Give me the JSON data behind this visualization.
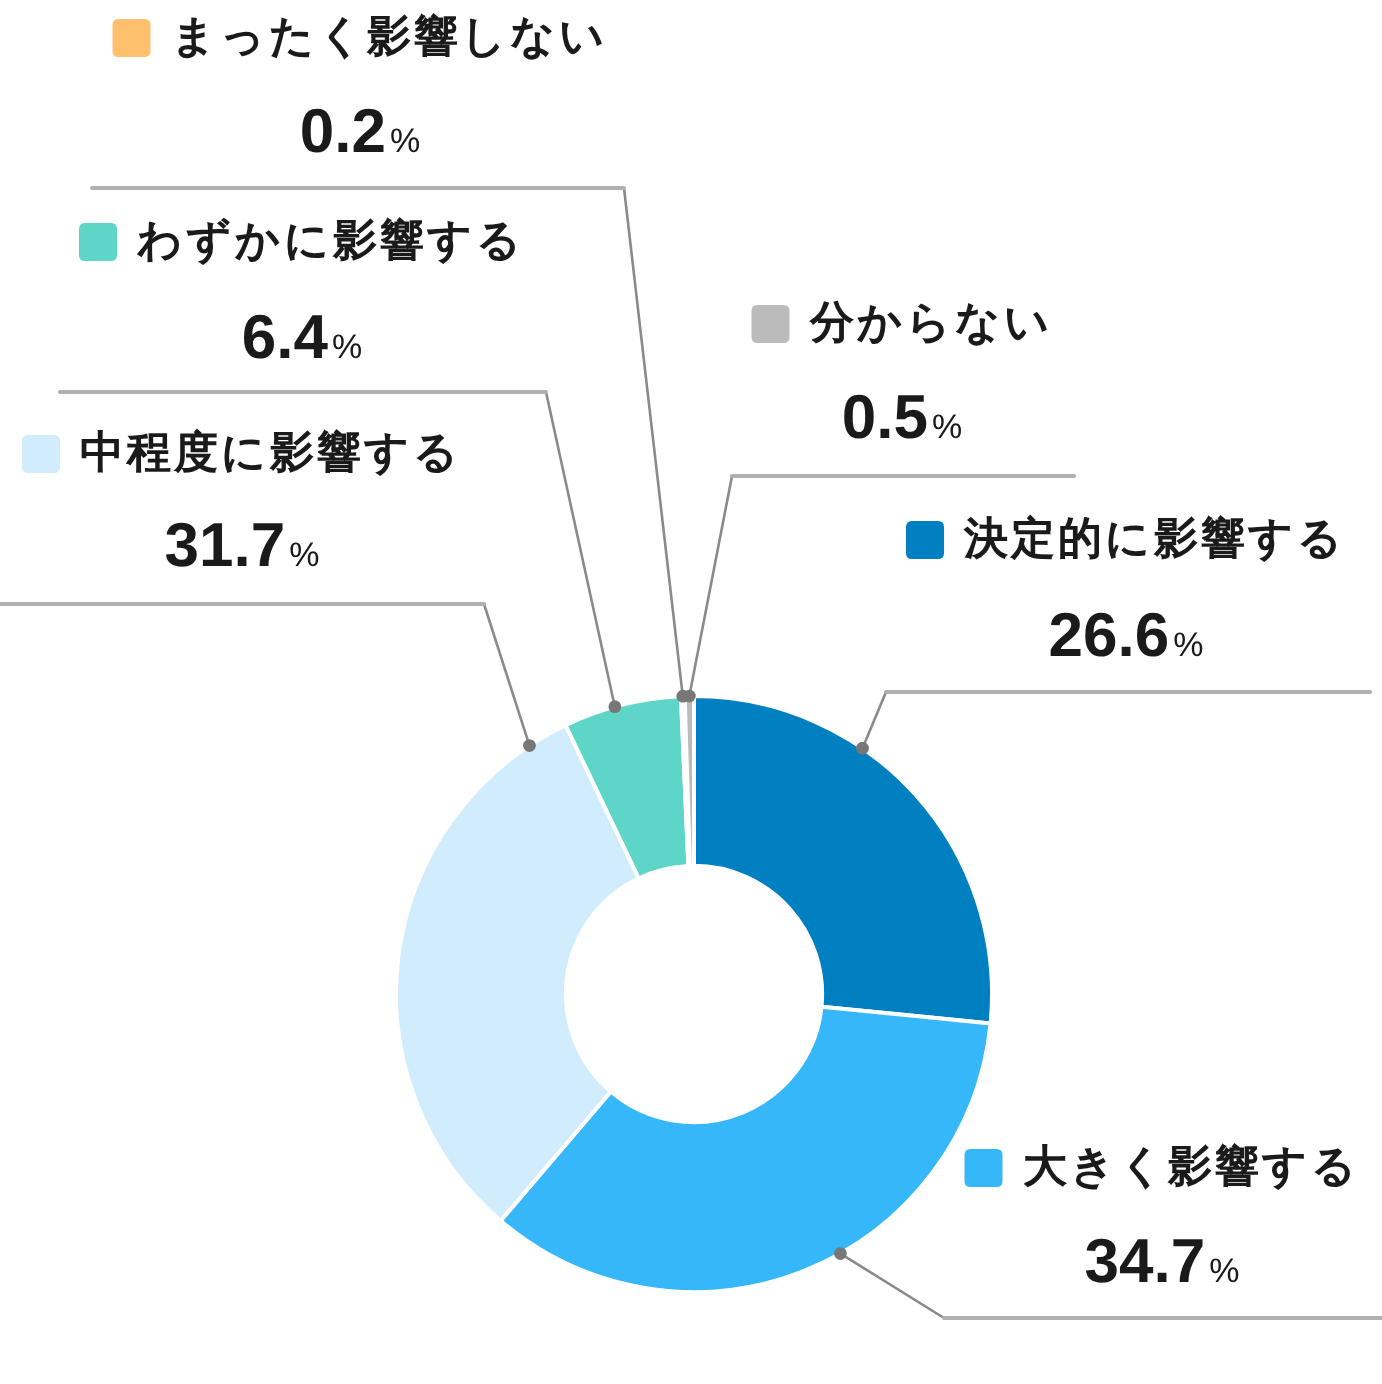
{
  "chart_data": {
    "type": "donut",
    "categories": [
      "決定的に影響する",
      "大きく影響する",
      "中程度に影響する",
      "わずかに影響する",
      "まったく影響しない",
      "分からない"
    ],
    "values": [
      26.6,
      34.7,
      31.7,
      6.4,
      0.2,
      0.5
    ],
    "colors": [
      "#0080c0",
      "#35b7fa",
      "#d1ecfd",
      "#5dd6c8",
      "#ffc06e",
      "#bbbbbb"
    ],
    "value_labels": [
      "26.6%",
      "34.7%",
      "31.7%",
      "6.4%",
      "0.2%",
      "0.5%"
    ],
    "legend": "top"
  }
}
